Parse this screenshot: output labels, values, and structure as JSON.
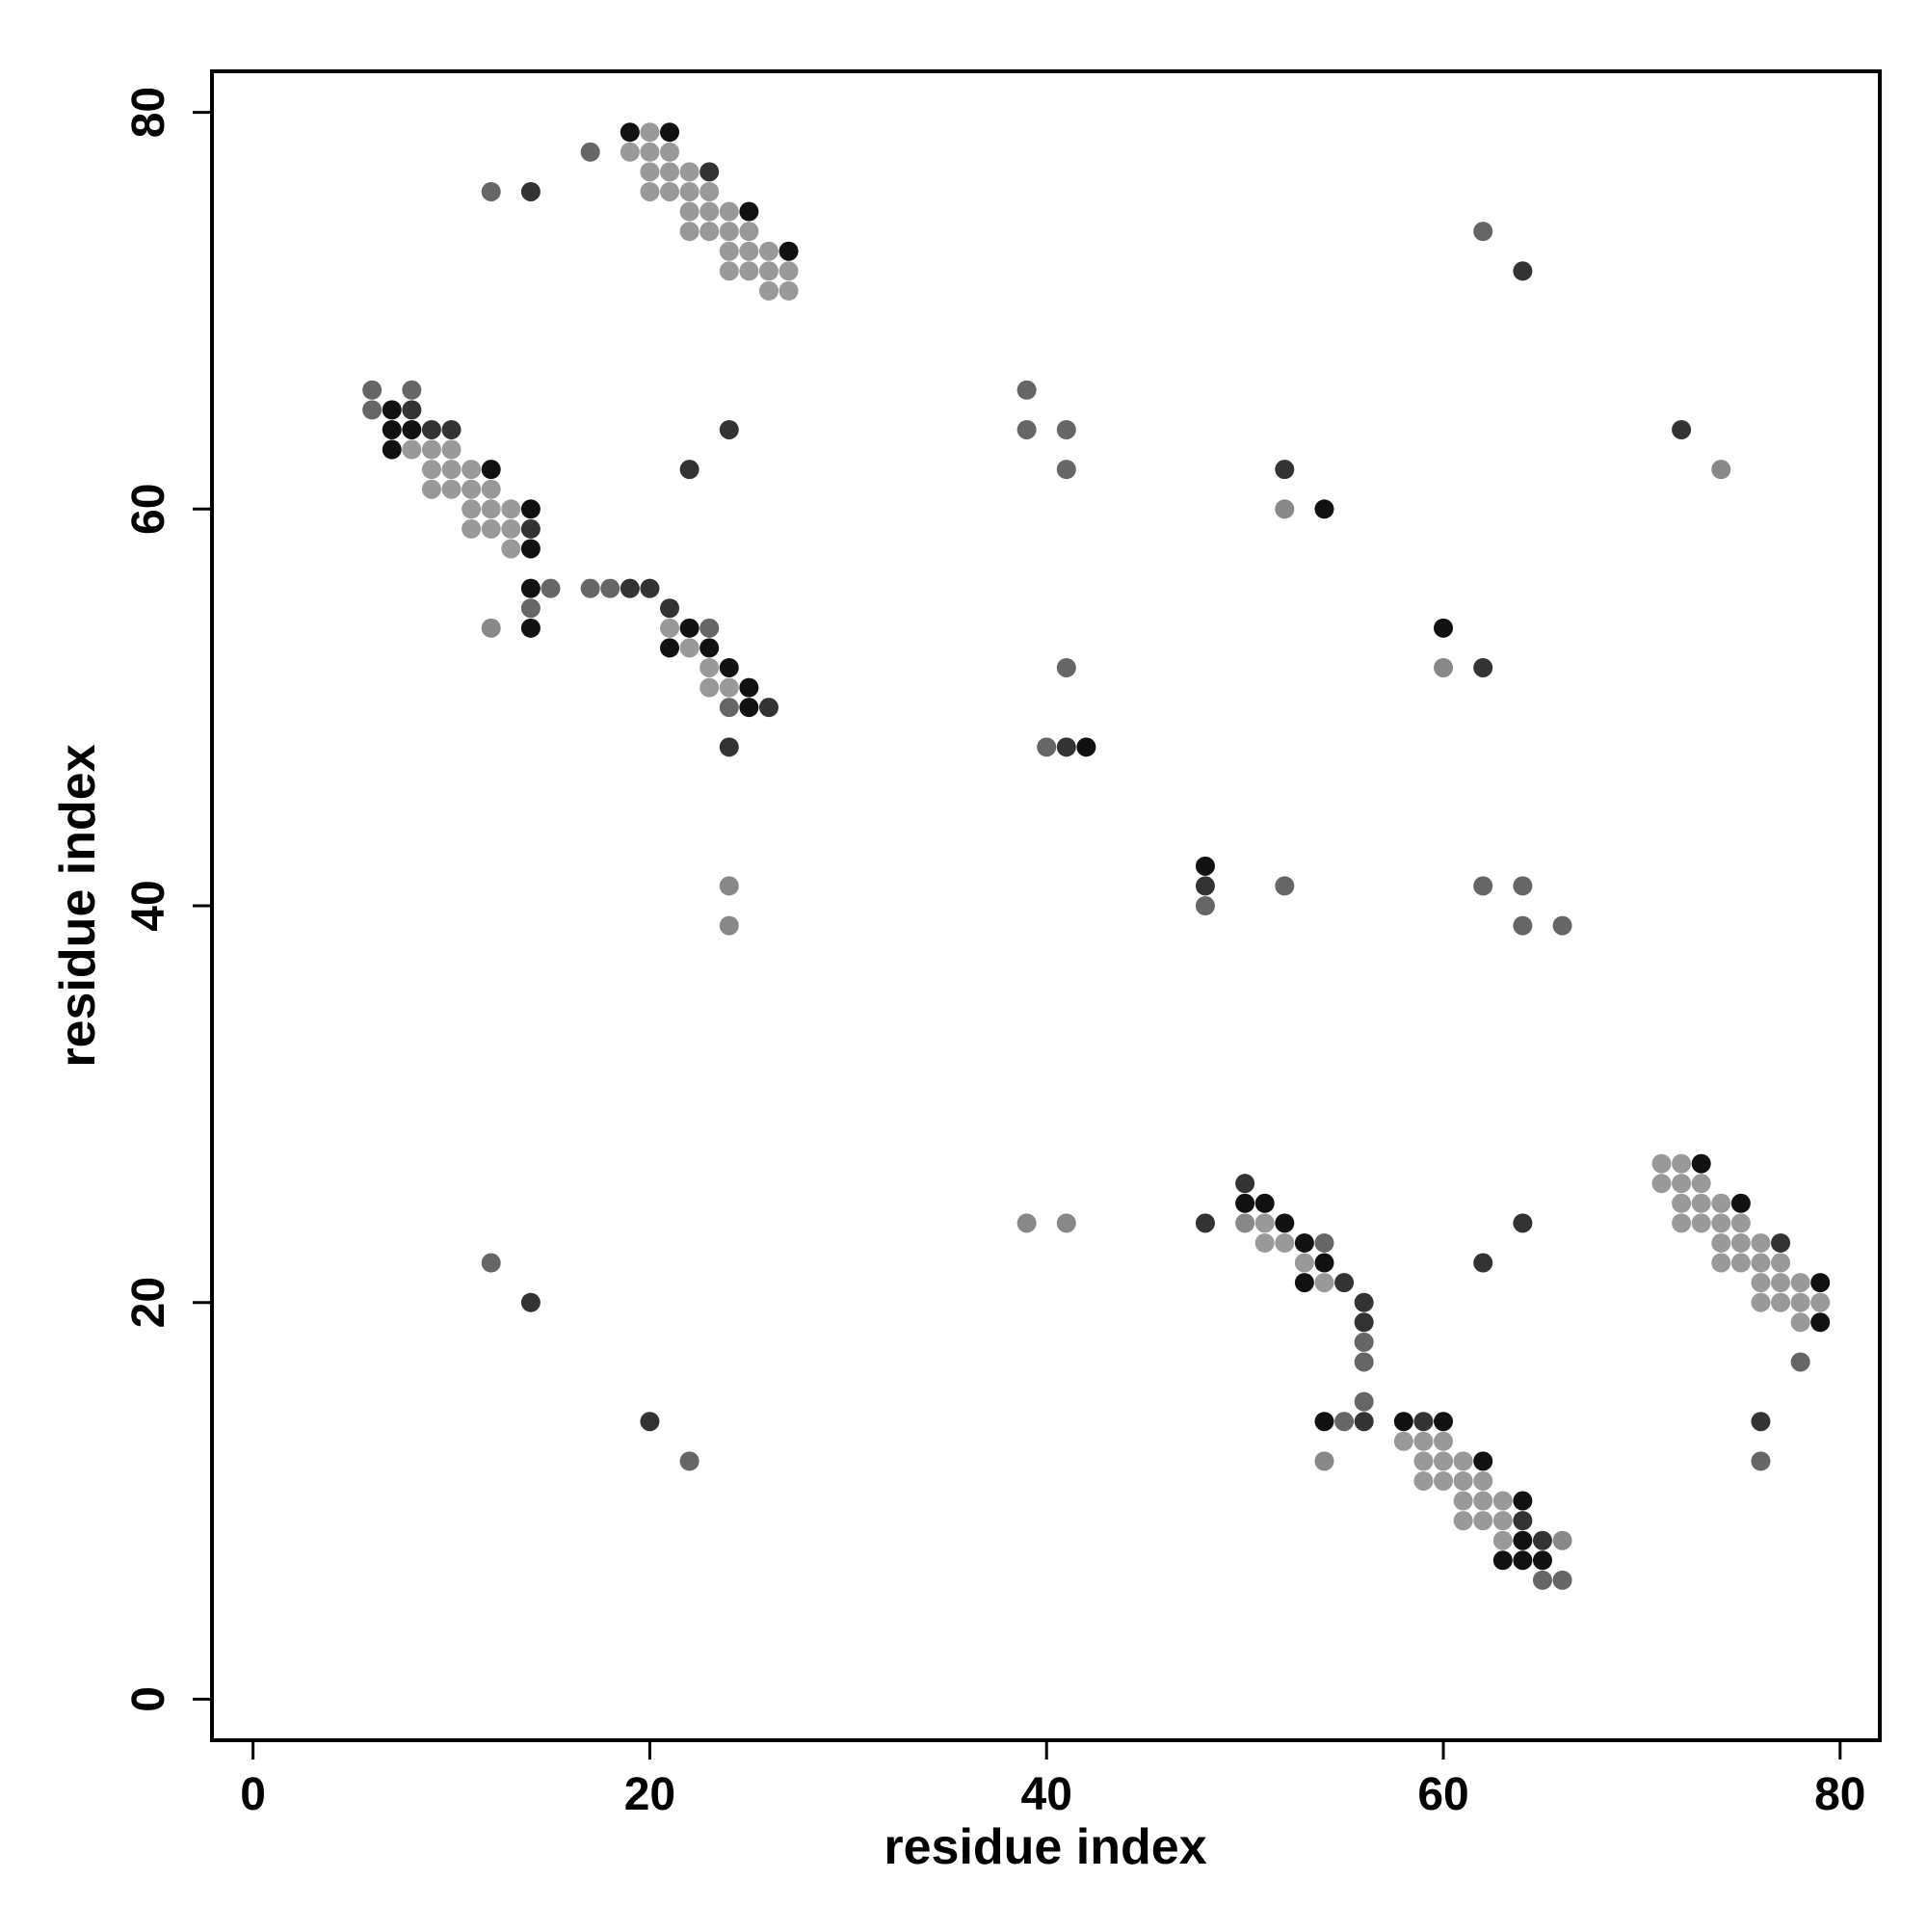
{
  "chart_data": {
    "type": "scatter",
    "xlabel": "residue index",
    "ylabel": "residue index",
    "xlim": [
      -2.07,
      82.0
    ],
    "ylim": [
      -2.07,
      82.07
    ],
    "xticks": [
      0,
      20,
      40,
      60,
      80
    ],
    "yticks": [
      0,
      20,
      40,
      60,
      80
    ],
    "x": [
      19,
      20,
      21,
      17,
      19,
      20,
      21,
      20,
      21,
      22,
      23,
      12,
      14,
      20,
      21,
      22,
      23,
      22,
      23,
      24,
      25,
      22,
      23,
      24,
      25,
      62,
      24,
      25,
      26,
      27,
      24,
      25,
      26,
      27,
      64,
      26,
      27,
      6,
      8,
      39,
      6,
      7,
      8,
      7,
      8,
      9,
      10,
      24,
      39,
      41,
      72,
      7,
      8,
      9,
      10,
      9,
      10,
      11,
      12,
      22,
      41,
      52,
      74,
      9,
      10,
      11,
      12,
      11,
      12,
      13,
      14,
      52,
      54,
      11,
      12,
      13,
      14,
      13,
      14,
      14,
      15,
      17,
      18,
      19,
      20,
      14,
      21,
      12,
      14,
      21,
      22,
      23,
      60,
      21,
      22,
      23,
      23,
      24,
      41,
      60,
      62,
      23,
      24,
      25,
      24,
      25,
      26,
      24,
      40,
      41,
      42,
      48,
      24,
      48,
      52,
      62,
      64,
      48,
      24,
      64,
      66,
      71,
      72,
      73,
      50,
      71,
      72,
      73,
      50,
      51,
      72,
      73,
      74,
      75,
      39,
      41,
      48,
      50,
      51,
      52,
      64,
      72,
      73,
      74,
      75,
      51,
      52,
      53,
      54,
      74,
      75,
      76,
      77,
      12,
      53,
      54,
      62,
      74,
      75,
      76,
      77,
      53,
      54,
      55,
      76,
      77,
      78,
      79,
      14,
      56,
      76,
      77,
      78,
      79,
      56,
      78,
      79,
      56,
      56,
      78,
      56,
      20,
      54,
      55,
      56,
      58,
      59,
      60,
      76,
      58,
      59,
      60,
      22,
      54,
      59,
      60,
      61,
      62,
      76,
      59,
      60,
      61,
      62,
      61,
      62,
      63,
      64,
      61,
      62,
      63,
      64,
      63,
      64,
      65,
      66,
      63,
      64,
      65,
      65,
      66
    ],
    "y": [
      79,
      79,
      79,
      78,
      78,
      78,
      78,
      77,
      77,
      77,
      77,
      76,
      76,
      76,
      76,
      76,
      76,
      75,
      75,
      75,
      75,
      74,
      74,
      74,
      74,
      74,
      73,
      73,
      73,
      73,
      72,
      72,
      72,
      72,
      72,
      71,
      71,
      66,
      66,
      66,
      65,
      65,
      65,
      64,
      64,
      64,
      64,
      64,
      64,
      64,
      64,
      63,
      63,
      63,
      63,
      62,
      62,
      62,
      62,
      62,
      62,
      62,
      62,
      61,
      61,
      61,
      61,
      60,
      60,
      60,
      60,
      60,
      60,
      59,
      59,
      59,
      59,
      58,
      58,
      56,
      56,
      56,
      56,
      56,
      56,
      55,
      55,
      54,
      54,
      54,
      54,
      54,
      54,
      53,
      53,
      53,
      52,
      52,
      52,
      52,
      52,
      51,
      51,
      51,
      50,
      50,
      50,
      48,
      48,
      48,
      48,
      42,
      41,
      41,
      41,
      41,
      41,
      40,
      39,
      39,
      39,
      27,
      27,
      27,
      26,
      26,
      26,
      26,
      25,
      25,
      25,
      25,
      25,
      25,
      24,
      24,
      24,
      24,
      24,
      24,
      24,
      24,
      24,
      24,
      24,
      23,
      23,
      23,
      23,
      23,
      23,
      23,
      23,
      22,
      22,
      22,
      22,
      22,
      22,
      22,
      22,
      21,
      21,
      21,
      21,
      21,
      21,
      21,
      20,
      20,
      20,
      20,
      20,
      20,
      19,
      19,
      19,
      18,
      17,
      17,
      15,
      14,
      14,
      14,
      14,
      14,
      14,
      14,
      14,
      13,
      13,
      13,
      12,
      12,
      12,
      12,
      12,
      12,
      12,
      11,
      11,
      11,
      11,
      10,
      10,
      10,
      10,
      9,
      9,
      9,
      9,
      8,
      8,
      8,
      8,
      7,
      7,
      7,
      6,
      6
    ],
    "colors": [
      "#111",
      "#999",
      "#111",
      "#666",
      "#999",
      "#999",
      "#999",
      "#999",
      "#999",
      "#999",
      "#333",
      "#666",
      "#333",
      "#999",
      "#999",
      "#999",
      "#999",
      "#999",
      "#999",
      "#999",
      "#111",
      "#999",
      "#999",
      "#999",
      "#999",
      "#666",
      "#999",
      "#999",
      "#999",
      "#111",
      "#999",
      "#999",
      "#999",
      "#999",
      "#333",
      "#999",
      "#999",
      "#666",
      "#666",
      "#666",
      "#666",
      "#111",
      "#333",
      "#111",
      "#111",
      "#333",
      "#333",
      "#333",
      "#666",
      "#666",
      "#333",
      "#111",
      "#999",
      "#999",
      "#999",
      "#999",
      "#999",
      "#999",
      "#111",
      "#333",
      "#666",
      "#333",
      "#888",
      "#999",
      "#999",
      "#999",
      "#999",
      "#999",
      "#999",
      "#999",
      "#111",
      "#888",
      "#111",
      "#999",
      "#999",
      "#999",
      "#333",
      "#999",
      "#111",
      "#111",
      "#666",
      "#666",
      "#666",
      "#333",
      "#333",
      "#666",
      "#333",
      "#888",
      "#111",
      "#999",
      "#111",
      "#666",
      "#111",
      "#111",
      "#999",
      "#111",
      "#999",
      "#111",
      "#666",
      "#888",
      "#333",
      "#999",
      "#999",
      "#111",
      "#666",
      "#111",
      "#333",
      "#333",
      "#666",
      "#333",
      "#111",
      "#111",
      "#888",
      "#333",
      "#666",
      "#666",
      "#666",
      "#666",
      "#888",
      "#666",
      "#666",
      "#999",
      "#999",
      "#111",
      "#333",
      "#999",
      "#999",
      "#999",
      "#111",
      "#111",
      "#999",
      "#999",
      "#999",
      "#111",
      "#888",
      "#888",
      "#333",
      "#888",
      "#999",
      "#111",
      "#333",
      "#999",
      "#999",
      "#999",
      "#999",
      "#999",
      "#999",
      "#111",
      "#666",
      "#999",
      "#999",
      "#999",
      "#333",
      "#666",
      "#999",
      "#111",
      "#333",
      "#999",
      "#999",
      "#999",
      "#999",
      "#111",
      "#999",
      "#333",
      "#999",
      "#999",
      "#999",
      "#111",
      "#333",
      "#333",
      "#999",
      "#999",
      "#999",
      "#999",
      "#333",
      "#999",
      "#111",
      "#666",
      "#666",
      "#666",
      "#666",
      "#333",
      "#111",
      "#666",
      "#333",
      "#111",
      "#333",
      "#111",
      "#333",
      "#999",
      "#999",
      "#999",
      "#666",
      "#888",
      "#999",
      "#999",
      "#999",
      "#111",
      "#666",
      "#999",
      "#999",
      "#999",
      "#999",
      "#999",
      "#999",
      "#999",
      "#111",
      "#999",
      "#999",
      "#999",
      "#333",
      "#999",
      "#111",
      "#333",
      "#888",
      "#111",
      "#111",
      "#111",
      "#666",
      "#666"
    ]
  }
}
